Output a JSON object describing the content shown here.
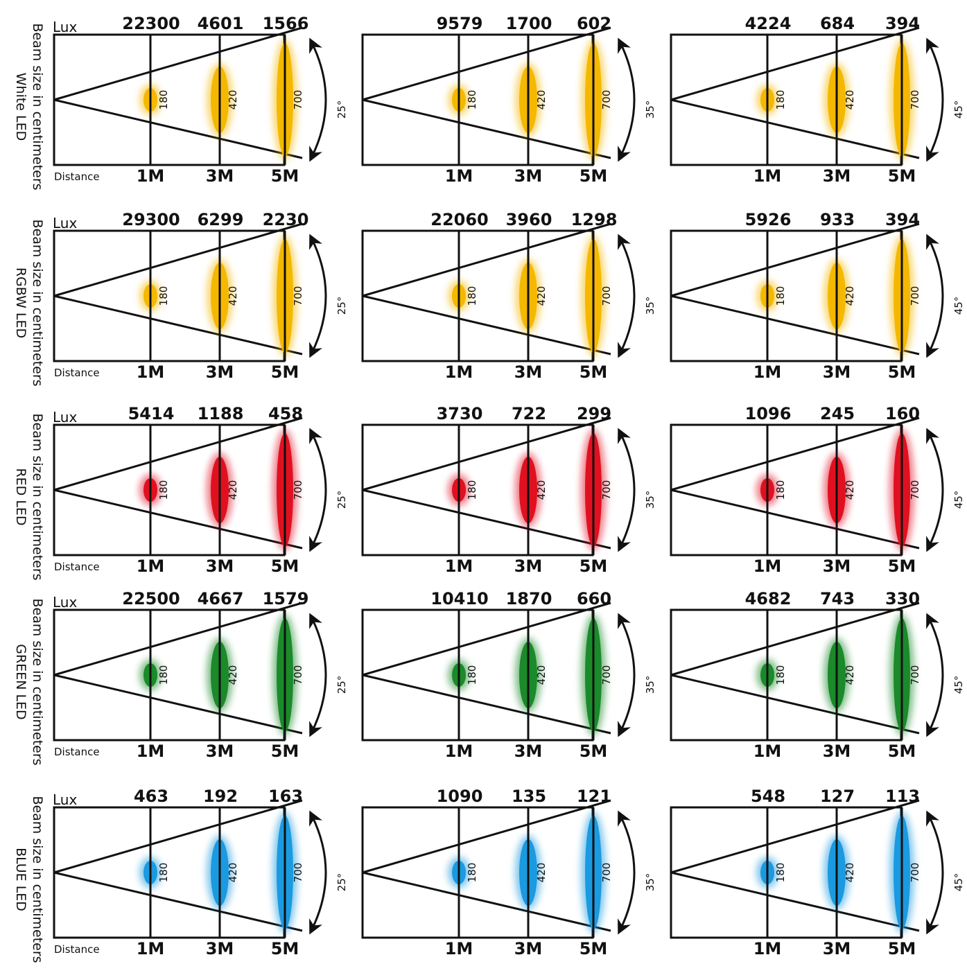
{
  "common": {
    "lux_label": "Lux",
    "distance_label": "Distance",
    "row_title_line1": "Beam size in centimeters",
    "distances": [
      "1M",
      "3M",
      "5M"
    ],
    "beam_sizes": [
      "180",
      "420",
      "700"
    ],
    "angles": [
      "25°",
      "35°",
      "45°"
    ]
  },
  "rows": [
    {
      "led": "White LED",
      "color": "#f5b800",
      "lux": [
        [
          "22300",
          "4601",
          "1566"
        ],
        [
          "9579",
          "1700",
          "602"
        ],
        [
          "4224",
          "684",
          "394"
        ]
      ]
    },
    {
      "led": "RGBW LED",
      "color": "#f5b800",
      "lux": [
        [
          "29300",
          "6299",
          "2230"
        ],
        [
          "22060",
          "3960",
          "1298"
        ],
        [
          "5926",
          "933",
          "394"
        ]
      ]
    },
    {
      "led": "RED LED",
      "color": "#e01020",
      "lux": [
        [
          "5414",
          "1188",
          "458"
        ],
        [
          "3730",
          "722",
          "299"
        ],
        [
          "1096",
          "245",
          "160"
        ]
      ]
    },
    {
      "led": "GREEN LED",
      "color": "#1a8a2a",
      "lux": [
        [
          "22500",
          "4667",
          "1579"
        ],
        [
          "10410",
          "1870",
          "660"
        ],
        [
          "4682",
          "743",
          "330"
        ]
      ]
    },
    {
      "led": "BLUE LED",
      "color": "#1a9ae0",
      "lux": [
        [
          "463",
          "192",
          "163"
        ],
        [
          "1090",
          "135",
          "121"
        ],
        [
          "548",
          "127",
          "113"
        ]
      ]
    }
  ]
}
